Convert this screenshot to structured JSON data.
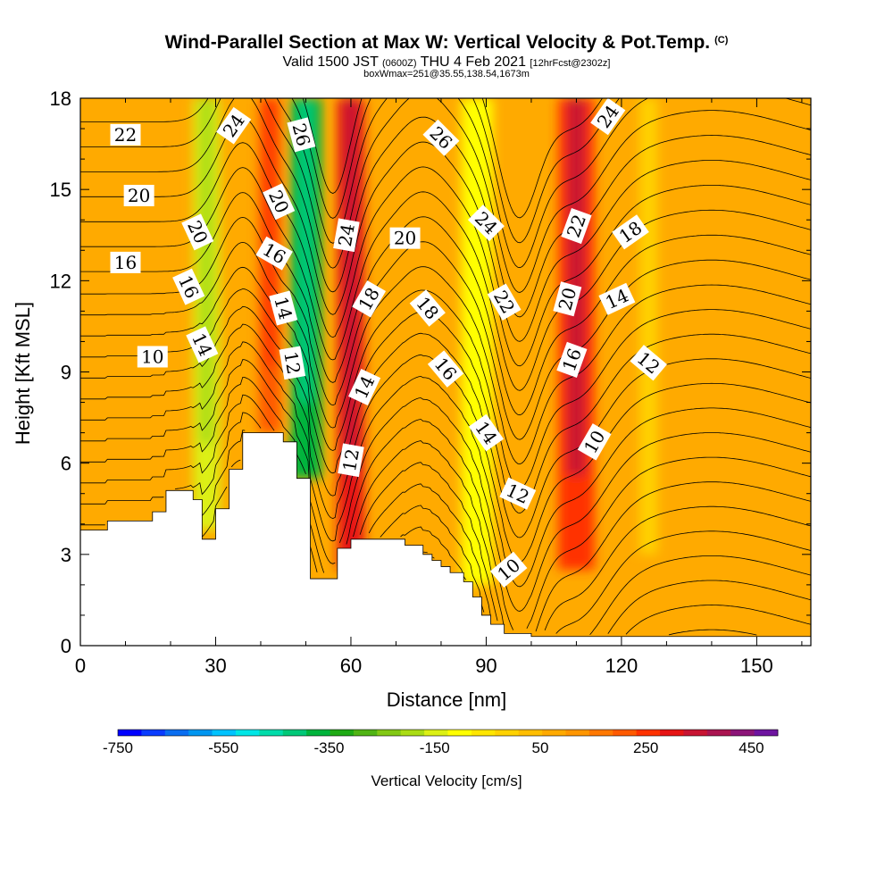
{
  "header": {
    "title": "Wind-Parallel Section at Max W: Vertical Velocity & Pot.Temp.",
    "title_mark": "(C)",
    "valid_prefix": "Valid 1500 JST",
    "valid_utc": "(0600Z)",
    "valid_date": "THU 4 Feb 2021",
    "valid_fcst": "[12hrFcst@2302z]",
    "boxwmax": "boxWmax=251@35.55,138.54,1673m"
  },
  "chart_data": {
    "type": "heatmap",
    "xlabel": "Distance [nm]",
    "ylabel": "Height [Kft MSL]",
    "xlim": [
      0,
      162
    ],
    "ylim": [
      0,
      18
    ],
    "x_ticks": [
      0,
      30,
      60,
      90,
      120,
      150
    ],
    "y_ticks": [
      0,
      3,
      6,
      9,
      12,
      15,
      18
    ],
    "colorbar": {
      "title": "Vertical Velocity [cm/s]",
      "range": [
        -750,
        500
      ],
      "step": 50,
      "tick_values": [
        -750,
        -550,
        -350,
        -150,
        50,
        250,
        450
      ],
      "colors": [
        "#0000ff",
        "#0a3cff",
        "#0a6ef0",
        "#0096f0",
        "#00c3ff",
        "#00e6e6",
        "#00dcaa",
        "#00c878",
        "#00b43c",
        "#1eaa14",
        "#50b414",
        "#82c814",
        "#aadc14",
        "#dcf014",
        "#ffff00",
        "#ffe600",
        "#ffd200",
        "#ffbe00",
        "#ffaa00",
        "#ff9600",
        "#ff7800",
        "#ff5a00",
        "#ff3200",
        "#e61414",
        "#c81432",
        "#aa1450",
        "#8c1478",
        "#6e14a0"
      ]
    },
    "velocity_field": {
      "description_units": "cm/s",
      "features": [
        {
          "x": 28,
          "w": 6,
          "y0": 3.8,
          "y1": 18,
          "value": -150
        },
        {
          "x": 42,
          "w": 5,
          "y0": 7.0,
          "y1": 18,
          "value": 200
        },
        {
          "x": 50,
          "w": 7,
          "y0": 5.5,
          "y1": 18,
          "value": -350
        },
        {
          "x": 60,
          "w": 6,
          "y0": 2.5,
          "y1": 18,
          "value": 280
        },
        {
          "x": 88,
          "w": 7,
          "y0": 2.0,
          "y1": 18,
          "value": -100
        },
        {
          "x": 110,
          "w": 8,
          "y0": 2.5,
          "y1": 18,
          "value": 260
        },
        {
          "x": 126,
          "w": 4,
          "y0": 3.0,
          "y1": 18,
          "value": 0
        }
      ],
      "background_value": 60
    },
    "terrain_kft": [
      [
        0,
        3.8
      ],
      [
        6,
        3.8
      ],
      [
        6,
        4.1
      ],
      [
        16,
        4.1
      ],
      [
        16,
        4.4
      ],
      [
        19,
        4.4
      ],
      [
        19,
        5.1
      ],
      [
        25,
        5.1
      ],
      [
        25,
        4.8
      ],
      [
        27,
        4.8
      ],
      [
        27,
        3.5
      ],
      [
        30,
        3.5
      ],
      [
        30,
        4.5
      ],
      [
        33,
        4.5
      ],
      [
        33,
        5.8
      ],
      [
        36,
        5.8
      ],
      [
        36,
        7.0
      ],
      [
        45,
        7.0
      ],
      [
        45,
        6.7
      ],
      [
        48,
        6.7
      ],
      [
        48,
        5.5
      ],
      [
        51,
        5.5
      ],
      [
        51,
        2.2
      ],
      [
        57,
        2.2
      ],
      [
        57,
        3.2
      ],
      [
        60,
        3.2
      ],
      [
        60,
        3.5
      ],
      [
        72,
        3.5
      ],
      [
        72,
        3.3
      ],
      [
        76,
        3.3
      ],
      [
        76,
        3.0
      ],
      [
        78,
        3.0
      ],
      [
        78,
        2.8
      ],
      [
        80,
        2.8
      ],
      [
        80,
        2.6
      ],
      [
        82,
        2.6
      ],
      [
        82,
        2.4
      ],
      [
        85,
        2.4
      ],
      [
        85,
        2.1
      ],
      [
        87,
        2.1
      ],
      [
        87,
        1.6
      ],
      [
        89,
        1.6
      ],
      [
        89,
        1.0
      ],
      [
        91,
        1.0
      ],
      [
        91,
        0.7
      ],
      [
        94,
        0.7
      ],
      [
        94,
        0.4
      ],
      [
        100,
        0.4
      ],
      [
        100,
        0.3
      ],
      [
        162,
        0.3
      ]
    ],
    "theta_contours": {
      "units": "C",
      "levels": [
        3,
        4,
        5,
        6,
        7,
        8,
        9,
        10,
        11,
        12,
        13,
        14,
        15,
        16,
        17,
        18,
        19,
        20,
        21,
        22,
        23,
        24,
        25,
        26,
        27
      ],
      "labels": [
        {
          "value": "22",
          "x": 10,
          "y": 16.8,
          "angle": 0
        },
        {
          "value": "20",
          "x": 13,
          "y": 14.8,
          "angle": 0
        },
        {
          "value": "16",
          "x": 10,
          "y": 12.6,
          "angle": 0
        },
        {
          "value": "10",
          "x": 16,
          "y": 9.5,
          "angle": 0
        },
        {
          "value": "24",
          "x": 34,
          "y": 17.1,
          "angle": -55
        },
        {
          "value": "20",
          "x": 26,
          "y": 13.6,
          "angle": 65
        },
        {
          "value": "16",
          "x": 24,
          "y": 11.8,
          "angle": 65
        },
        {
          "value": "14",
          "x": 27,
          "y": 9.9,
          "angle": 65
        },
        {
          "value": "26",
          "x": 49,
          "y": 16.8,
          "angle": 75
        },
        {
          "value": "20",
          "x": 44,
          "y": 14.6,
          "angle": 65
        },
        {
          "value": "16",
          "x": 43,
          "y": 12.9,
          "angle": 30
        },
        {
          "value": "14",
          "x": 45,
          "y": 11.1,
          "angle": 75
        },
        {
          "value": "12",
          "x": 47,
          "y": 9.3,
          "angle": 80
        },
        {
          "value": "24",
          "x": 59,
          "y": 13.5,
          "angle": -80
        },
        {
          "value": "18",
          "x": 64,
          "y": 11.4,
          "angle": -60
        },
        {
          "value": "14",
          "x": 63,
          "y": 8.5,
          "angle": -65
        },
        {
          "value": "12",
          "x": 60,
          "y": 6.1,
          "angle": -80
        },
        {
          "value": "20",
          "x": 72,
          "y": 13.4,
          "angle": 0
        },
        {
          "value": "18",
          "x": 77,
          "y": 11.1,
          "angle": 50
        },
        {
          "value": "16",
          "x": 81,
          "y": 9.1,
          "angle": 50
        },
        {
          "value": "14",
          "x": 90,
          "y": 7.0,
          "angle": 55
        },
        {
          "value": "12",
          "x": 97,
          "y": 5.0,
          "angle": 25
        },
        {
          "value": "10",
          "x": 95,
          "y": 2.5,
          "angle": -40
        },
        {
          "value": "26",
          "x": 80,
          "y": 16.7,
          "angle": 45
        },
        {
          "value": "24",
          "x": 90,
          "y": 13.9,
          "angle": 45
        },
        {
          "value": "22",
          "x": 94,
          "y": 11.3,
          "angle": 60
        },
        {
          "value": "24",
          "x": 117,
          "y": 17.4,
          "angle": -55
        },
        {
          "value": "22",
          "x": 110,
          "y": 13.8,
          "angle": -70
        },
        {
          "value": "20",
          "x": 108,
          "y": 11.4,
          "angle": -75
        },
        {
          "value": "16",
          "x": 109,
          "y": 9.4,
          "angle": -70
        },
        {
          "value": "10",
          "x": 114,
          "y": 6.7,
          "angle": -60
        },
        {
          "value": "18",
          "x": 122,
          "y": 13.6,
          "angle": -35
        },
        {
          "value": "14",
          "x": 119,
          "y": 11.4,
          "angle": -25
        },
        {
          "value": "12",
          "x": 126,
          "y": 9.3,
          "angle": 40
        }
      ]
    }
  }
}
